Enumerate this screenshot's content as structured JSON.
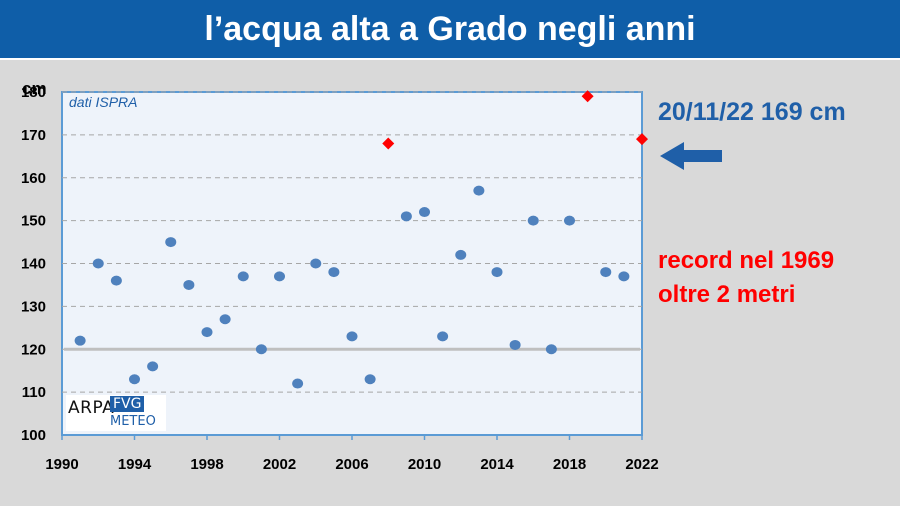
{
  "title": "l’acqua alta a Grado negli anni",
  "annotations": {
    "latest": "20/11/22 169 cm",
    "record_line1": "record nel 1969",
    "record_line2": "oltre 2 metri"
  },
  "logo": {
    "text_arpa": "ARPA",
    "text_fvg": "FVG",
    "text_meteo": "METEO"
  },
  "colors": {
    "title_bar": "#0f5ea8",
    "points": "#4f81bd",
    "highlight": "#ff0000",
    "arrow": "#1f5fa8",
    "reference_line": "#bfbfbf"
  },
  "arrow_icon": "arrow-left-icon",
  "chart_data": {
    "type": "scatter",
    "source_label": "dati ISPRA",
    "ylabel": "cm",
    "xlabel": "",
    "xlim": [
      1990,
      2022
    ],
    "ylim": [
      100,
      180
    ],
    "x_ticks": [
      1990,
      1994,
      1998,
      2002,
      2006,
      2010,
      2014,
      2018,
      2022
    ],
    "y_ticks": [
      100,
      110,
      120,
      130,
      140,
      150,
      160,
      170,
      180
    ],
    "grid": "horizontal dashed",
    "reference_line": 120,
    "series": [
      {
        "marker": "circle",
        "x": [
          1991,
          1992,
          1993,
          1994,
          1995,
          1996,
          1997,
          1998,
          1999,
          2000,
          2001,
          2002,
          2003,
          2004,
          2005,
          2006,
          2007,
          2009,
          2010,
          2011,
          2012,
          2013,
          2014,
          2015,
          2016,
          2017,
          2018,
          2020,
          2021
        ],
        "y": [
          122,
          140,
          136,
          113,
          116,
          145,
          135,
          124,
          127,
          137,
          120,
          137,
          112,
          140,
          138,
          123,
          113,
          151,
          152,
          123,
          142,
          157,
          138,
          121,
          150,
          120,
          150,
          138,
          137
        ]
      },
      {
        "marker": "diamond",
        "x": [
          2008,
          2019,
          2022
        ],
        "y": [
          168,
          179,
          169
        ]
      }
    ]
  }
}
